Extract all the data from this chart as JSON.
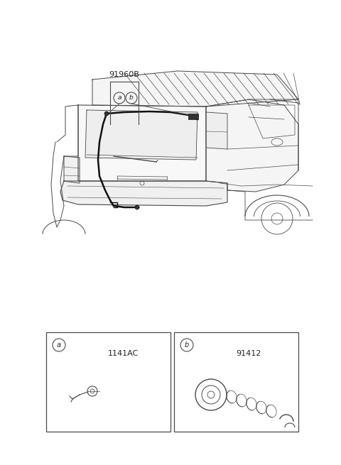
{
  "bg_color": "#ffffff",
  "line_color": "#4a4a4a",
  "dark_line": "#222222",
  "fig_width": 4.8,
  "fig_height": 6.55,
  "dpi": 100,
  "title_part": "91960B",
  "label_a": "a",
  "label_b": "b",
  "part_a_code": "1141AC",
  "part_b_code": "91412"
}
